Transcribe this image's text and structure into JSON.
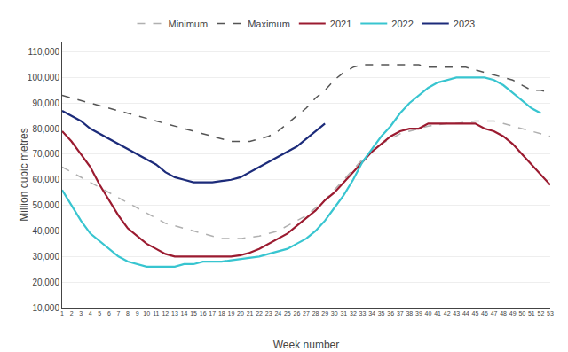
{
  "chart_data": {
    "type": "line",
    "x": [
      1,
      2,
      3,
      4,
      5,
      6,
      7,
      8,
      9,
      10,
      11,
      12,
      13,
      14,
      15,
      16,
      17,
      18,
      19,
      20,
      21,
      22,
      23,
      24,
      25,
      26,
      27,
      28,
      29,
      30,
      31,
      32,
      33,
      34,
      35,
      36,
      37,
      38,
      39,
      40,
      41,
      42,
      43,
      44,
      45,
      46,
      47,
      48,
      49,
      50,
      51,
      52,
      53
    ],
    "series": [
      {
        "name": "Minimum",
        "color": "#b0b0b0",
        "line_style": "dashed",
        "values": [
          65000,
          63000,
          61000,
          59000,
          57000,
          55000,
          53000,
          51000,
          49000,
          47000,
          45000,
          43000,
          42000,
          41000,
          40000,
          39000,
          38000,
          37000,
          37000,
          37000,
          37500,
          38000,
          39000,
          40000,
          42000,
          44000,
          46000,
          49000,
          52000,
          56000,
          60000,
          64000,
          68000,
          71000,
          74000,
          76000,
          78000,
          79000,
          80000,
          81000,
          81500,
          82000,
          82000,
          82500,
          83000,
          83000,
          83000,
          82000,
          81000,
          80000,
          79000,
          78000,
          77000
        ]
      },
      {
        "name": "Maximum",
        "color": "#555555",
        "line_style": "dashed",
        "values": [
          93000,
          92000,
          91000,
          90000,
          89000,
          88000,
          87000,
          86000,
          85000,
          84000,
          83000,
          82000,
          81000,
          80000,
          79000,
          78000,
          77000,
          76000,
          75000,
          75000,
          75000,
          76000,
          77000,
          79000,
          82000,
          85000,
          88000,
          92000,
          95000,
          99000,
          102000,
          104000,
          105000,
          105000,
          105000,
          105000,
          105000,
          105000,
          105000,
          104000,
          104000,
          104000,
          104000,
          104000,
          103000,
          102000,
          101000,
          100000,
          99000,
          97000,
          95000,
          95000,
          94000
        ]
      },
      {
        "name": "2021",
        "color": "#9b1b30",
        "line_style": "solid",
        "values": [
          79000,
          75000,
          70000,
          65000,
          58000,
          52000,
          46000,
          41000,
          38000,
          35000,
          33000,
          31000,
          30000,
          30000,
          30000,
          30000,
          30000,
          30000,
          30000,
          30500,
          31500,
          33000,
          35000,
          37000,
          39000,
          42000,
          45000,
          48000,
          52000,
          55000,
          59000,
          63000,
          67000,
          71000,
          74000,
          77000,
          79000,
          80000,
          80000,
          82000,
          82000,
          82000,
          82000,
          82000,
          82000,
          80000,
          79000,
          77000,
          74000,
          70000,
          66000,
          62000,
          58000
        ]
      },
      {
        "name": "2022",
        "color": "#38c5d0",
        "line_style": "solid",
        "values": [
          56000,
          50000,
          44000,
          39000,
          36000,
          33000,
          30000,
          28000,
          27000,
          26000,
          26000,
          26000,
          26000,
          27000,
          27000,
          28000,
          28000,
          28000,
          28500,
          29000,
          29500,
          30000,
          31000,
          32000,
          33000,
          35000,
          37000,
          40000,
          44000,
          49000,
          54000,
          60000,
          67000,
          72000,
          77000,
          81000,
          86000,
          90000,
          93000,
          96000,
          98000,
          99000,
          100000,
          100000,
          100000,
          100000,
          99000,
          97000,
          94000,
          91000,
          88000,
          86000,
          null
        ]
      },
      {
        "name": "2023",
        "color": "#1c2b7a",
        "line_style": "solid",
        "values": [
          87000,
          85000,
          83000,
          80000,
          78000,
          76000,
          74000,
          72000,
          70000,
          68000,
          66000,
          63000,
          61000,
          60000,
          59000,
          59000,
          59000,
          59500,
          60000,
          61000,
          63000,
          65000,
          67000,
          69000,
          71000,
          73000,
          76000,
          79000,
          82000,
          null,
          null,
          null,
          null,
          null,
          null,
          null,
          null,
          null,
          null,
          null,
          null,
          null,
          null,
          null,
          null,
          null,
          null,
          null,
          null,
          null,
          null,
          null,
          null
        ]
      }
    ],
    "xlabel": "Week number",
    "ylabel": "Million cubic metres",
    "xlim": [
      1,
      53
    ],
    "xticks": [
      1,
      2,
      3,
      4,
      5,
      6,
      7,
      8,
      9,
      10,
      11,
      12,
      13,
      14,
      15,
      16,
      17,
      18,
      19,
      20,
      21,
      22,
      23,
      24,
      25,
      26,
      27,
      28,
      29,
      30,
      31,
      32,
      33,
      34,
      35,
      36,
      37,
      38,
      39,
      40,
      41,
      42,
      43,
      44,
      45,
      46,
      47,
      48,
      49,
      50,
      51,
      52,
      53
    ],
    "ylim": [
      10000,
      114000
    ],
    "yticks": [
      {
        "value": 10000,
        "label": "10,000"
      },
      {
        "value": 20000,
        "label": "20,000"
      },
      {
        "value": 30000,
        "label": "30,000"
      },
      {
        "value": 40000,
        "label": "40,000"
      },
      {
        "value": 50000,
        "label": "50,000"
      },
      {
        "value": 60000,
        "label": "60,000"
      },
      {
        "value": 70000,
        "label": "70,000"
      },
      {
        "value": 80000,
        "label": "80,000"
      },
      {
        "value": 90000,
        "label": "90,000"
      },
      {
        "value": 100000,
        "label": "100,000"
      },
      {
        "value": 110000,
        "label": "110,000"
      }
    ],
    "grid": "y",
    "legend": "top"
  }
}
